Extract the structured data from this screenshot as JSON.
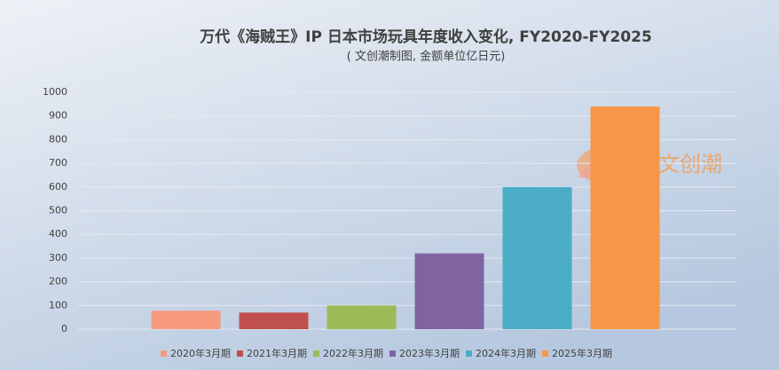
{
  "chart_data": {
    "type": "bar",
    "title": "万代《海贼王》IP 日本市场玩具年度收入变化, FY2020-FY2025",
    "subtitle": "( 文创潮制图, 金额单位亿日元)",
    "watermark": "文创潮",
    "categories": [
      null
    ],
    "series": [
      {
        "name": "2020年3月期",
        "color": "#f79a7c",
        "values": [
          78
        ]
      },
      {
        "name": "2021年3月期",
        "color": "#c0504d",
        "values": [
          70
        ]
      },
      {
        "name": "2022年3月期",
        "color": "#9bbb59",
        "values": [
          100
        ]
      },
      {
        "name": "2023年3月期",
        "color": "#8064a2",
        "values": [
          320
        ]
      },
      {
        "name": "2024年3月期",
        "color": "#4bacc6",
        "values": [
          600
        ]
      },
      {
        "name": "2025年3月期",
        "color": "#f79646",
        "values": [
          940
        ]
      }
    ],
    "ylim": [
      0,
      1000
    ],
    "yticks": [
      0,
      100,
      200,
      300,
      400,
      500,
      600,
      700,
      800,
      900,
      1000
    ],
    "grid": true
  }
}
